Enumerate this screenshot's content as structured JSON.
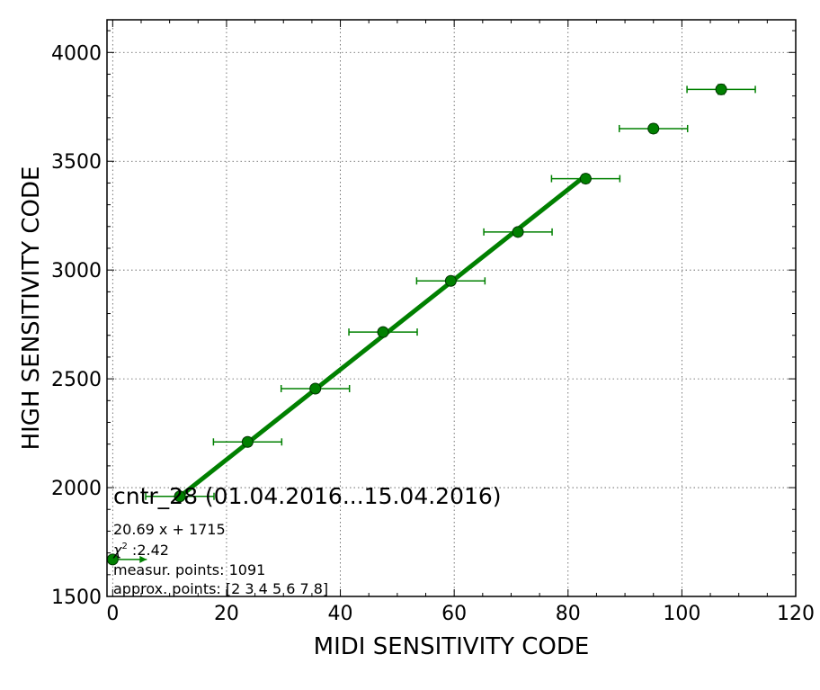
{
  "colors": {
    "series": "#008000",
    "marker_edge": "#003300",
    "grid": "#555555",
    "axes": "#000000",
    "background": "#ffffff"
  },
  "annotations": {
    "title": "cntr_28 (01.04.2016...15.04.2016)",
    "fit_equation": "20.69 x + 1715",
    "chi2_prefix": "χ",
    "chi2_superscript": "2",
    "chi2_value": " :2.42",
    "measured_points": "measur. points: 1091",
    "approx_points": "approx. points: [2 3 4 5 6 7 8]"
  },
  "chart_data": {
    "type": "scatter",
    "title": "",
    "xlabel": "MIDI SENSITIVITY CODE",
    "ylabel": "HIGH SENSITIVITY CODE",
    "xlim": [
      -1,
      120
    ],
    "ylim": [
      1500,
      4150
    ],
    "x_ticks": [
      0,
      20,
      40,
      60,
      80,
      100,
      120
    ],
    "y_ticks": [
      1500,
      2000,
      2500,
      3000,
      3500,
      4000
    ],
    "x_tick_labels": [
      "0",
      "20",
      "40",
      "60",
      "80",
      "100",
      "120"
    ],
    "y_tick_labels": [
      "1500",
      "2000",
      "2500",
      "3000",
      "3500",
      "4000"
    ],
    "grid": true,
    "points": [
      {
        "x": 0,
        "y": 1670,
        "xerr_minus": 0,
        "xerr_plus": 6,
        "yerr": 0
      },
      {
        "x": 11.8,
        "y": 1960,
        "xerr_minus": 6,
        "xerr_plus": 6,
        "yerr": 0
      },
      {
        "x": 23.7,
        "y": 2210,
        "xerr_minus": 6,
        "xerr_plus": 6,
        "yerr": 0
      },
      {
        "x": 35.6,
        "y": 2455,
        "xerr_minus": 6,
        "xerr_plus": 6,
        "yerr": 0
      },
      {
        "x": 47.5,
        "y": 2715,
        "xerr_minus": 6,
        "xerr_plus": 6,
        "yerr": 0
      },
      {
        "x": 59.4,
        "y": 2950,
        "xerr_minus": 6,
        "xerr_plus": 6,
        "yerr": 0
      },
      {
        "x": 71.2,
        "y": 3175,
        "xerr_minus": 6,
        "xerr_plus": 6,
        "yerr": 0
      },
      {
        "x": 83.1,
        "y": 3420,
        "xerr_minus": 6,
        "xerr_plus": 6,
        "yerr": 20
      },
      {
        "x": 95.0,
        "y": 3650,
        "xerr_minus": 6,
        "xerr_plus": 6,
        "yerr": 20
      },
      {
        "x": 106.9,
        "y": 3830,
        "xerr_minus": 6,
        "xerr_plus": 6,
        "yerr": 22
      }
    ],
    "fit": {
      "slope": 20.69,
      "intercept": 1715,
      "x_start": 11.8,
      "x_end": 83.1
    }
  }
}
